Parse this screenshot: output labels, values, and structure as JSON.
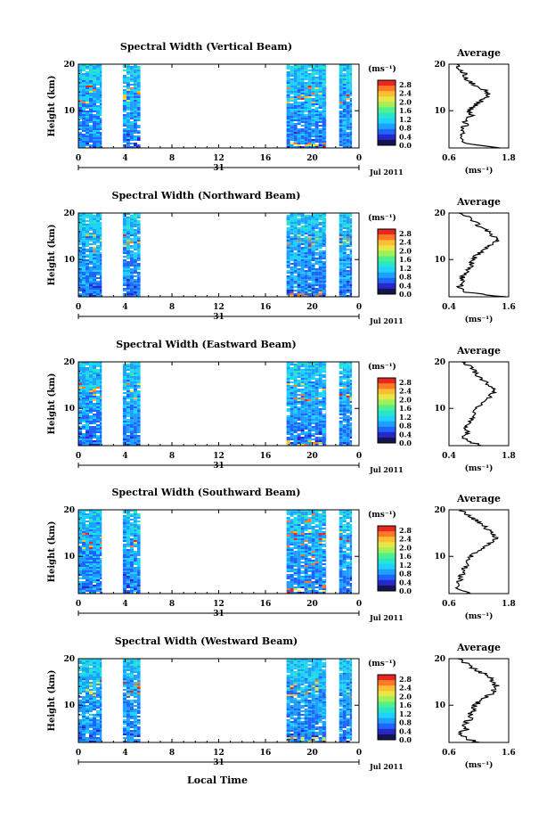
{
  "figure": {
    "common": {
      "ylabel": "Height (km)",
      "height_ticks": [
        "20",
        "10"
      ],
      "time_ticks": [
        "0",
        "4",
        "8",
        "12",
        "16",
        "20",
        "0"
      ],
      "day_label": "31",
      "month_year_label": "Jul 2011",
      "colorbar_unit": "(ms⁻¹)",
      "colorbar_ticks": [
        "2.8",
        "2.4",
        "2.0",
        "1.6",
        "1.2",
        "0.8",
        "0.4",
        "0.0"
      ],
      "avg_title": "Average",
      "avg_xlabel": "(ms⁻¹)",
      "bottom_xlabel": "Local Time"
    },
    "colormap": [
      "#141450",
      "#2828c8",
      "#1e64ff",
      "#1ea0ff",
      "#1ed2ff",
      "#28e6c8",
      "#50f08c",
      "#a0f05a",
      "#e6e646",
      "#ffbe32",
      "#ff7828",
      "#e6281e"
    ]
  },
  "chart_data": [
    {
      "type": "heatmap",
      "title": "Spectral Width (Vertical Beam)",
      "xlabel": "",
      "ylabel": "Height (km)",
      "x_range_hours": [
        0,
        24
      ],
      "y_range_km": [
        2,
        20
      ],
      "value_range_ms": [
        0.0,
        3.0
      ],
      "data_time_blocks_hours": [
        [
          0,
          2.0
        ],
        [
          3.8,
          5.3
        ],
        [
          17.8,
          21.2
        ],
        [
          22.3,
          23.4
        ]
      ],
      "average_profile": {
        "title": "Average",
        "xlim": [
          0.6,
          1.8
        ],
        "xticks": [
          "0.6",
          "1.8"
        ],
        "height_km": [
          2,
          3,
          4,
          5,
          6,
          7,
          8,
          9,
          10,
          11,
          12,
          13,
          14,
          15,
          16,
          17,
          18,
          19,
          20
        ],
        "value_ms": [
          1.65,
          0.95,
          0.8,
          0.9,
          0.85,
          0.95,
          0.9,
          1.05,
          1.0,
          1.1,
          1.25,
          1.35,
          1.4,
          1.2,
          1.05,
          0.95,
          0.9,
          0.8,
          0.75
        ]
      }
    },
    {
      "type": "heatmap",
      "title": "Spectral Width (Northward Beam)",
      "xlabel": "",
      "ylabel": "Height (km)",
      "x_range_hours": [
        0,
        24
      ],
      "y_range_km": [
        2,
        20
      ],
      "value_range_ms": [
        0.0,
        3.0
      ],
      "data_time_blocks_hours": [
        [
          0,
          2.0
        ],
        [
          3.8,
          5.3
        ],
        [
          17.8,
          21.2
        ],
        [
          22.3,
          23.4
        ]
      ],
      "average_profile": {
        "title": "Average",
        "xlim": [
          0.4,
          1.6
        ],
        "xticks": [
          "0.4",
          "1.6"
        ],
        "height_km": [
          2,
          3,
          4,
          5,
          6,
          7,
          8,
          9,
          10,
          11,
          12,
          13,
          14,
          15,
          16,
          17,
          18,
          19,
          20
        ],
        "value_ms": [
          1.5,
          0.75,
          0.6,
          0.7,
          0.65,
          0.75,
          0.8,
          0.85,
          0.9,
          0.95,
          1.1,
          1.2,
          1.35,
          1.3,
          1.2,
          1.0,
          0.95,
          0.8,
          0.6
        ]
      }
    },
    {
      "type": "heatmap",
      "title": "Spectral Width (Eastward Beam)",
      "xlabel": "",
      "ylabel": "Height (km)",
      "x_range_hours": [
        0,
        24
      ],
      "y_range_km": [
        2,
        20
      ],
      "value_range_ms": [
        0.0,
        3.0
      ],
      "data_time_blocks_hours": [
        [
          0,
          2.0
        ],
        [
          3.8,
          5.3
        ],
        [
          17.8,
          21.2
        ],
        [
          22.3,
          23.4
        ]
      ],
      "average_profile": {
        "title": "Average",
        "xlim": [
          0.4,
          1.8
        ],
        "xticks": [
          "0.4",
          "1.8"
        ],
        "height_km": [
          2,
          3,
          4,
          5,
          6,
          7,
          8,
          9,
          10,
          11,
          12,
          13,
          14,
          15,
          16,
          17,
          18,
          19,
          20
        ],
        "value_ms": [
          1.2,
          0.8,
          0.75,
          0.85,
          0.8,
          0.9,
          0.95,
          1.0,
          1.05,
          1.15,
          1.3,
          1.4,
          1.5,
          1.35,
          1.2,
          1.05,
          1.0,
          0.9,
          0.7
        ]
      }
    },
    {
      "type": "heatmap",
      "title": "Spectral Width (Southward Beam)",
      "xlabel": "",
      "ylabel": "Height (km)",
      "x_range_hours": [
        0,
        24
      ],
      "y_range_km": [
        2,
        20
      ],
      "value_range_ms": [
        0.0,
        3.0
      ],
      "data_time_blocks_hours": [
        [
          0,
          2.0
        ],
        [
          3.8,
          5.3
        ],
        [
          17.8,
          21.2
        ],
        [
          22.3,
          23.4
        ]
      ],
      "average_profile": {
        "title": "Average",
        "xlim": [
          0.6,
          1.8
        ],
        "xticks": [
          "0.6",
          "1.8"
        ],
        "height_km": [
          2,
          3,
          4,
          5,
          6,
          7,
          8,
          9,
          10,
          11,
          12,
          13,
          14,
          15,
          16,
          17,
          18,
          19,
          20
        ],
        "value_ms": [
          1.0,
          0.8,
          0.75,
          0.85,
          0.85,
          0.9,
          0.95,
          1.0,
          1.05,
          1.15,
          1.3,
          1.45,
          1.55,
          1.5,
          1.35,
          1.25,
          1.1,
          0.95,
          0.85
        ]
      }
    },
    {
      "type": "heatmap",
      "title": "Spectral Width (Westward Beam)",
      "xlabel": "Local Time",
      "ylabel": "Height (km)",
      "x_range_hours": [
        0,
        24
      ],
      "y_range_km": [
        2,
        20
      ],
      "value_range_ms": [
        0.0,
        3.0
      ],
      "data_time_blocks_hours": [
        [
          0,
          2.0
        ],
        [
          3.8,
          5.3
        ],
        [
          17.8,
          21.2
        ],
        [
          22.3,
          23.4
        ]
      ],
      "average_profile": {
        "title": "Average",
        "xlim": [
          0.6,
          1.6
        ],
        "xticks": [
          "0.6",
          "1.6"
        ],
        "height_km": [
          2,
          3,
          4,
          5,
          6,
          7,
          8,
          9,
          10,
          11,
          12,
          13,
          14,
          15,
          16,
          17,
          18,
          19,
          20
        ],
        "value_ms": [
          1.1,
          0.85,
          0.8,
          0.9,
          0.85,
          0.95,
          0.95,
          1.0,
          1.05,
          1.1,
          1.25,
          1.35,
          1.4,
          1.35,
          1.3,
          1.15,
          1.0,
          0.9,
          0.75
        ]
      }
    }
  ]
}
